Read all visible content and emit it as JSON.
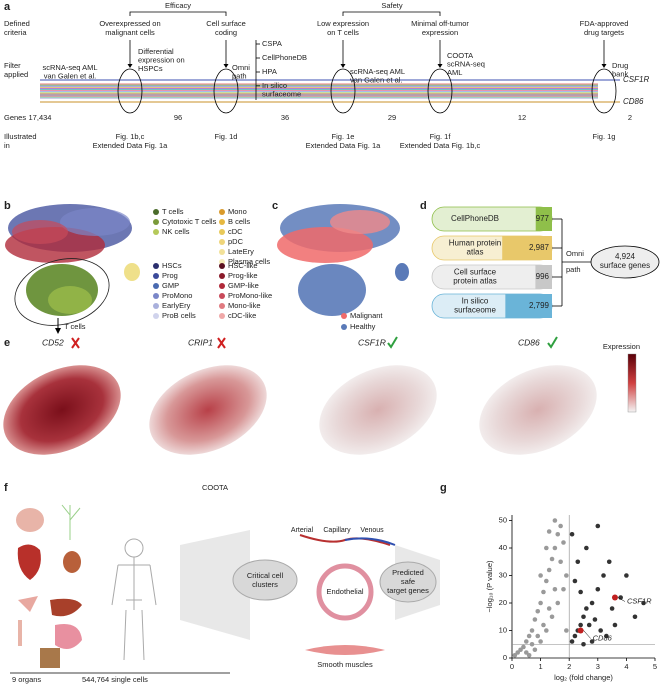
{
  "panel_labels": [
    "a",
    "b",
    "c",
    "d",
    "e",
    "f",
    "g"
  ],
  "a": {
    "row_labels": [
      [
        "Defined",
        "criteria"
      ],
      [
        "Filter",
        "applied"
      ],
      [
        "Genes"
      ],
      [
        "Illustrated",
        "in"
      ]
    ],
    "groups": [
      "Efficacy",
      "Safety"
    ],
    "start": {
      "filter": [
        "scRNA-seq AML",
        "van Galen et al."
      ],
      "genes": "17,434"
    },
    "stages": [
      {
        "criteria": [
          "Overexpressed on",
          "malignant cells"
        ],
        "filter": [
          "Differential",
          "expression on",
          "HSPCs"
        ],
        "genes": "96",
        "illustrated": [
          "Fig. 1b,c",
          "Extended Data Fig. 1a"
        ]
      },
      {
        "criteria": [
          "Cell surface",
          "coding"
        ],
        "filter": [
          "Omni",
          "path"
        ],
        "sources": [
          [
            "CSPA"
          ],
          [
            "CellPhoneDB"
          ],
          [
            "HPA"
          ],
          [
            "In silico",
            "surfaceome"
          ]
        ],
        "genes": "36",
        "illustrated": [
          "Fig. 1d"
        ]
      },
      {
        "criteria": [
          "Low expression",
          "on T cells"
        ],
        "filter": [
          "scRNA-seq AML",
          "van Galen et al."
        ],
        "genes": "29",
        "illustrated": [
          "Fig. 1e",
          "Extended Data Fig. 1a"
        ]
      },
      {
        "criteria": [
          "Minimal off-tumor",
          "expression"
        ],
        "filter": [
          "COOTA",
          "scRNA-seq",
          "AML"
        ],
        "genes": "12",
        "illustrated": [
          "Fig. 1f",
          "Extended Data Fig. 1b,c"
        ]
      },
      {
        "criteria": [
          "FDA-approved",
          "drug targets"
        ],
        "filter": [
          "Drug",
          "bank"
        ],
        "genes": "2",
        "illustrated": [
          "Fig. 1g"
        ]
      }
    ],
    "gene_labels": [
      {
        "name": "CSF1R",
        "color": "#3b4fb0"
      },
      {
        "name": "CD86",
        "color": "#c8902a"
      }
    ]
  },
  "b": {
    "legend": [
      [
        {
          "name": "T cells",
          "color": "#4a6b2a"
        },
        {
          "name": "Cytotoxic T cells",
          "color": "#7a9a3a"
        },
        {
          "name": "NK cells",
          "color": "#b5c95a"
        }
      ],
      [
        {
          "name": "Mono",
          "color": "#d99a2b"
        },
        {
          "name": "B cells",
          "color": "#e6b840"
        },
        {
          "name": "cDC",
          "color": "#e8c95a"
        },
        {
          "name": "pDC",
          "color": "#efd57a"
        },
        {
          "name": "LateEry",
          "color": "#f2e199"
        },
        {
          "name": "Plasma cells",
          "color": "#f5ebb8"
        }
      ],
      [
        {
          "name": "HSCs",
          "color": "#2b2f6e"
        },
        {
          "name": "Prog",
          "color": "#3b4a9a"
        },
        {
          "name": "GMP",
          "color": "#4a6ab0"
        },
        {
          "name": "ProMono",
          "color": "#7a86c8"
        },
        {
          "name": "EarlyEry",
          "color": "#a9b0dc"
        },
        {
          "name": "ProB cells",
          "color": "#d0d3ec"
        }
      ],
      [
        {
          "name": "HSC-like",
          "color": "#5a1020"
        },
        {
          "name": "Prog-like",
          "color": "#8a1a2a"
        },
        {
          "name": "GMP-like",
          "color": "#b02a3a"
        },
        {
          "name": "ProMono-like",
          "color": "#c84a5a"
        },
        {
          "name": "Mono-like",
          "color": "#e07a80"
        },
        {
          "name": "cDC-like",
          "color": "#f0a8a8"
        }
      ]
    ],
    "callout": "T cells"
  },
  "c": {
    "legend": [
      {
        "name": "Malignant",
        "color": "#f06a6a"
      },
      {
        "name": "Healthy",
        "color": "#5a7ab8"
      }
    ]
  },
  "d": {
    "sources": [
      {
        "name": [
          "CellPhoneDB"
        ],
        "count": 977,
        "text_color": "#4a8a1a",
        "bg": "#e3efd2",
        "color": "#8fbf4a"
      },
      {
        "name": [
          "Human protein",
          "atlas"
        ],
        "count": {
          "value": 2987,
          "label": "2,987"
        },
        "text_color": "#b8901a",
        "bg": "#f7efd2",
        "color": "#e8c86a"
      },
      {
        "name": [
          "Cell surface",
          "protein atlas"
        ],
        "count": 996,
        "text_color": "#777777",
        "bg": "#eeeeee",
        "color": "#c8c8c8"
      },
      {
        "name": [
          "In silico",
          "surfaceome"
        ],
        "count": {
          "value": 2799,
          "label": "2,799"
        },
        "text_color": "#2a7ab0",
        "bg": "#dcedf6",
        "color": "#6ab4d8"
      }
    ],
    "count_max": 3000,
    "merge": [
      "Omni",
      "path"
    ],
    "result": [
      "4,924",
      "surface genes"
    ]
  },
  "e": {
    "genes": [
      "CD52",
      "CRIP1",
      "CSF1R",
      "CD86"
    ],
    "colorbar_label": "Expression"
  },
  "f": {
    "title": "COOTA",
    "vessels": [
      "Arterial",
      "Capillary",
      "Venous"
    ],
    "cells": [
      "Endothelial",
      "Smooth muscles"
    ],
    "clusters": [
      "Critical cell",
      "clusters"
    ],
    "result": [
      "Predicted",
      "safe",
      "target genes"
    ],
    "footer": [
      "9 organs",
      "544,764 single cells"
    ]
  },
  "chart_data": {
    "type": "scatter",
    "xlabel": "log₂ (fold change)",
    "ylabel": "−log₁₀ (P value)",
    "xlim": [
      0,
      5
    ],
    "xticks": [
      0,
      1,
      2,
      3,
      4,
      5
    ],
    "ylim": [
      0,
      52
    ],
    "yticks": [
      0,
      10,
      20,
      30,
      40,
      50
    ],
    "x_threshold": 2,
    "y_threshold": 5,
    "series": [
      {
        "color": "#9a9a9a",
        "x": [
          0.1,
          0.2,
          0.3,
          0.4,
          0.5,
          0.6,
          0.7,
          0.8,
          0.9,
          1.0,
          1.1,
          1.2,
          1.3,
          1.4,
          1.5,
          1.6,
          1.7,
          1.8,
          1.9,
          0.5,
          0.7,
          0.9,
          1.1,
          1.3,
          1.5,
          1.7,
          0.8,
          1.0,
          1.2,
          1.4,
          1.6,
          1.9,
          1.2,
          1.0,
          1.3,
          0.6,
          1.8,
          1.5
        ],
        "values": [
          1,
          2,
          3,
          4,
          6,
          8,
          10,
          14,
          17,
          20,
          24,
          28,
          32,
          36,
          40,
          45,
          48,
          42,
          30,
          2,
          5,
          8,
          12,
          18,
          25,
          35,
          3,
          6,
          10,
          15,
          20,
          10,
          40,
          30,
          46,
          1,
          25,
          50
        ]
      },
      {
        "color": "#333333",
        "x": [
          2.1,
          2.2,
          2.3,
          2.4,
          2.5,
          2.6,
          2.8,
          3.0,
          3.2,
          3.4,
          2.2,
          2.4,
          2.6,
          2.9,
          3.1,
          3.5,
          3.8,
          4.0,
          4.3,
          4.6,
          2.1,
          2.3,
          2.7,
          3.3,
          2.5,
          2.8,
          3.0,
          3.6
        ],
        "values": [
          6,
          8,
          10,
          12,
          15,
          18,
          20,
          25,
          30,
          35,
          28,
          24,
          40,
          14,
          10,
          18,
          22,
          30,
          15,
          20,
          45,
          35,
          12,
          8,
          5,
          6,
          48,
          12
        ]
      }
    ],
    "highlights": [
      {
        "name": "CSF1R",
        "x": 3.6,
        "y": 22,
        "color": "#c02020"
      },
      {
        "name": "CD86",
        "x": 2.4,
        "y": 10,
        "color": "#c02020"
      }
    ]
  }
}
